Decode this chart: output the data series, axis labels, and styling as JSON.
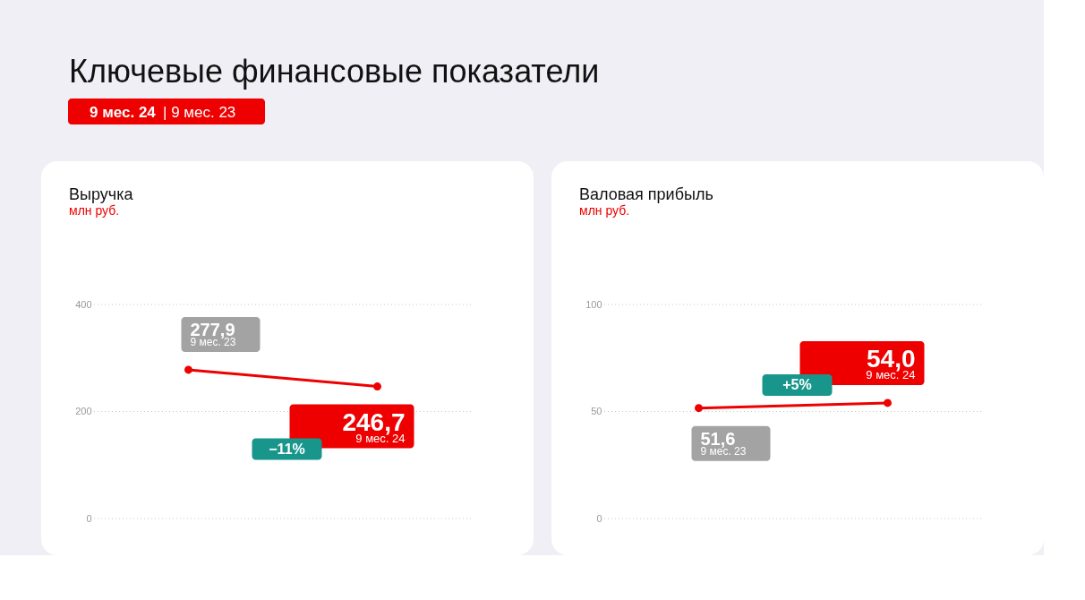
{
  "chart_data": [
    {
      "type": "other",
      "title": "Ключевые финансовые показатели",
      "annotations": [
        "9 мес. 24",
        "| 9 мес. 23"
      ]
    },
    {
      "type": "line",
      "title": "Выручка",
      "subtitle": "млн руб.",
      "categories": [
        null,
        null
      ],
      "series": [
        {
          "color": "#ee0000",
          "values": [
            277.9,
            246.7
          ],
          "value_labels": [
            "277,9",
            "246,7"
          ]
        }
      ],
      "ylim": [
        0,
        400
      ],
      "yticks": [
        0,
        200,
        400
      ],
      "grid": "y",
      "marker": "circle",
      "line_style": "solid",
      "annotations": [
        "9 мес. 23",
        "9 мес. 24",
        "−11%"
      ]
    },
    {
      "type": "line",
      "title": "Валовая прибыль",
      "subtitle": "млн руб.",
      "categories": [
        null,
        null
      ],
      "series": [
        {
          "color": "#ee0000",
          "values": [
            51.6,
            54.0
          ],
          "value_labels": [
            "51,6",
            "54,0"
          ]
        }
      ],
      "ylim": [
        0,
        100
      ],
      "yticks": [
        0,
        50,
        100
      ],
      "grid": "y",
      "marker": "circle",
      "line_style": "solid",
      "annotations": [
        "9 мес. 23",
        "9 мес. 24",
        "+5%"
      ]
    }
  ]
}
